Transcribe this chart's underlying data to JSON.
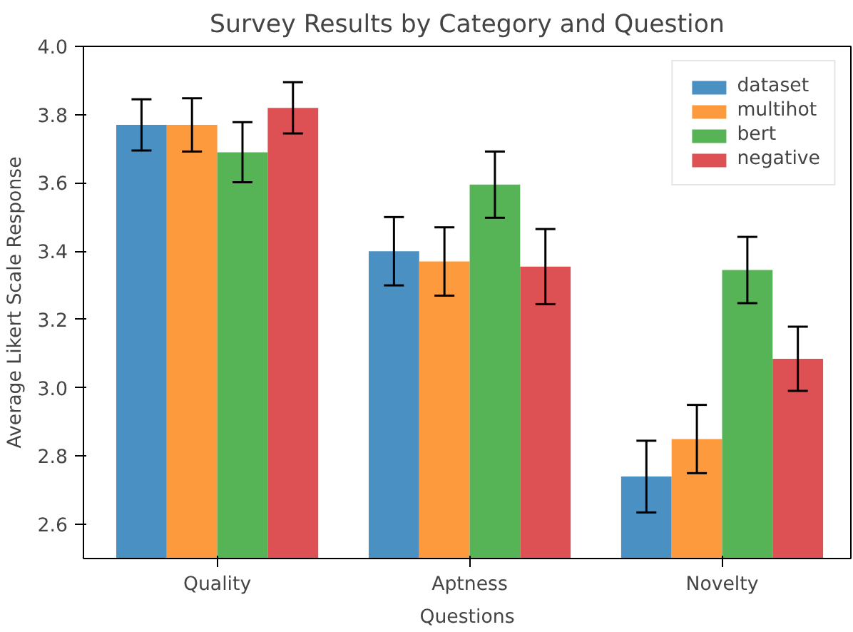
{
  "chart_data": {
    "type": "bar",
    "title": "Survey Results by Category and Question",
    "xlabel": "Questions",
    "ylabel": "Average Likert Scale Response",
    "categories": [
      "Quality",
      "Aptness",
      "Novelty"
    ],
    "series": [
      {
        "name": "dataset",
        "color": "#4a90c2",
        "values": [
          3.77,
          3.4,
          2.74
        ],
        "errors": [
          0.075,
          0.1,
          0.105
        ]
      },
      {
        "name": "multihot",
        "color": "#fd9a3d",
        "values": [
          3.77,
          3.37,
          2.85
        ],
        "errors": [
          0.078,
          0.1,
          0.1
        ]
      },
      {
        "name": "bert",
        "color": "#56b356",
        "values": [
          3.69,
          3.595,
          3.345
        ],
        "errors": [
          0.088,
          0.097,
          0.097
        ]
      },
      {
        "name": "negative",
        "color": "#dd5155",
        "values": [
          3.82,
          3.355,
          3.085
        ],
        "errors": [
          0.075,
          0.11,
          0.094
        ]
      }
    ],
    "ylim": [
      2.5,
      4.0
    ],
    "yticks": [
      2.6,
      2.8,
      {
        "value": 3.0,
        "label": "3.0"
      },
      3.2,
      3.4,
      3.6,
      3.8,
      {
        "value": 4.0,
        "label": "4.0"
      }
    ],
    "grid": false,
    "legend": "top right"
  }
}
